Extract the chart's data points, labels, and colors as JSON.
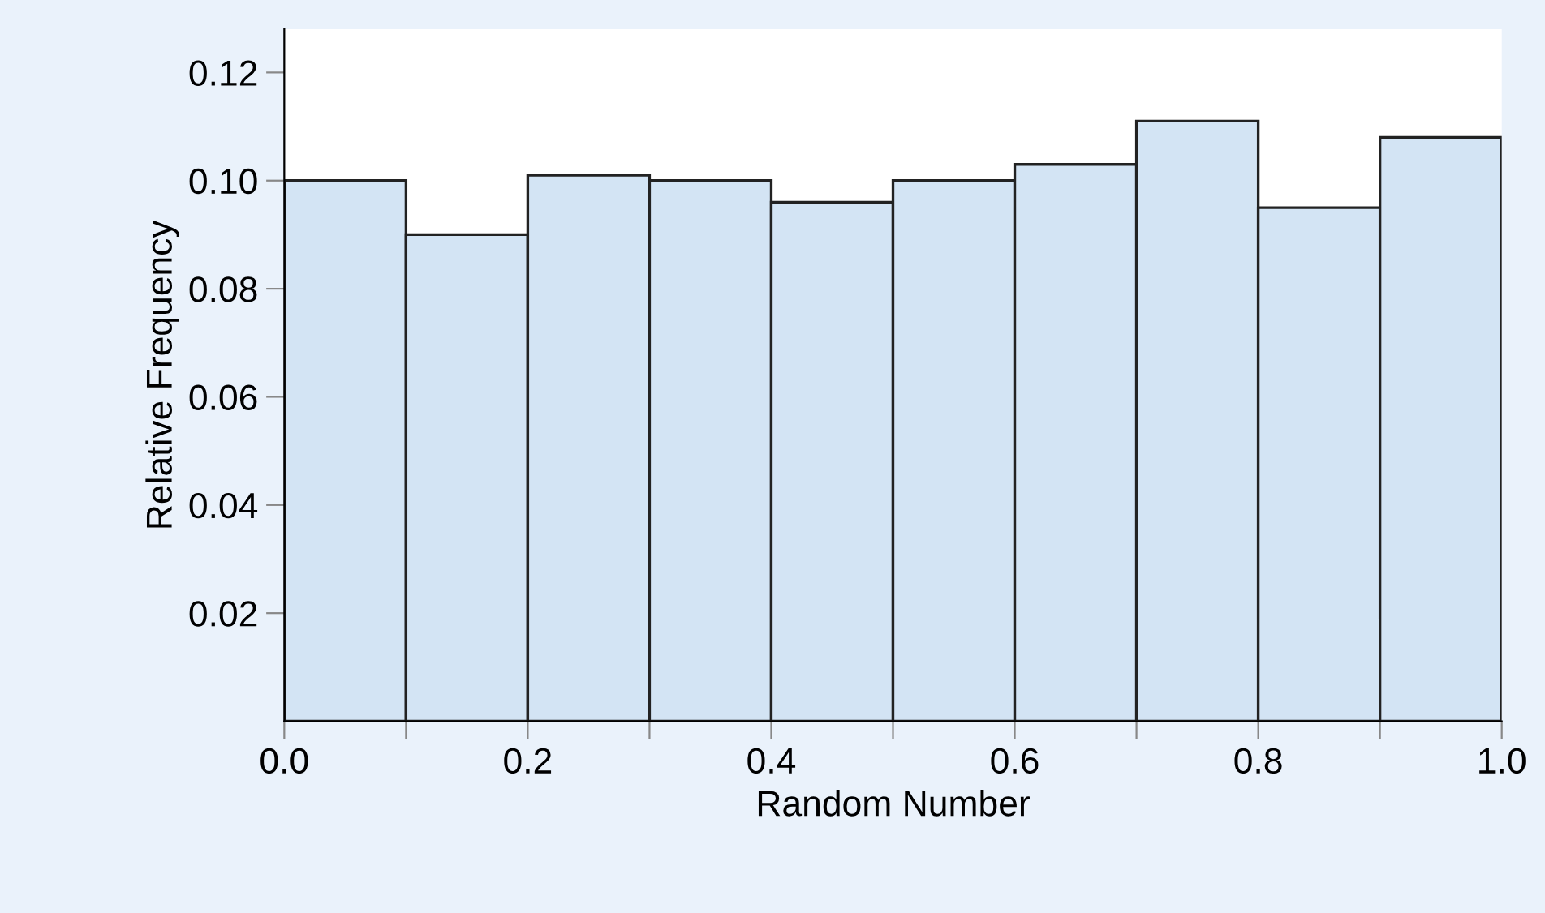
{
  "chart_data": {
    "type": "histogram",
    "xlabel": "Random Number",
    "ylabel": "Relative Frequency",
    "bins": [
      0.0,
      0.1,
      0.2,
      0.3,
      0.4,
      0.5,
      0.6,
      0.7,
      0.8,
      0.9,
      1.0
    ],
    "values": [
      0.1,
      0.09,
      0.101,
      0.1,
      0.096,
      0.1,
      0.103,
      0.111,
      0.095,
      0.108
    ],
    "color": "#d3e4f4",
    "xlim": [
      0.0,
      1.0
    ],
    "ylim": [
      0,
      0.128
    ],
    "xticks": [
      {
        "value": 0.0,
        "label": "0.0"
      },
      {
        "value": 0.1,
        "label": null
      },
      {
        "value": 0.2,
        "label": "0.2"
      },
      {
        "value": 0.3,
        "label": null
      },
      {
        "value": 0.4,
        "label": "0.4"
      },
      {
        "value": 0.5,
        "label": null
      },
      {
        "value": 0.6,
        "label": "0.6"
      },
      {
        "value": 0.7,
        "label": null
      },
      {
        "value": 0.8,
        "label": "0.8"
      },
      {
        "value": 0.9,
        "label": null
      },
      {
        "value": 1.0,
        "label": "1.0"
      }
    ],
    "yticks": [
      0.02,
      0.04,
      0.06,
      0.08,
      {
        "value": 0.1,
        "label": "0.10"
      },
      0.12
    ],
    "grid": false,
    "legend": false
  }
}
